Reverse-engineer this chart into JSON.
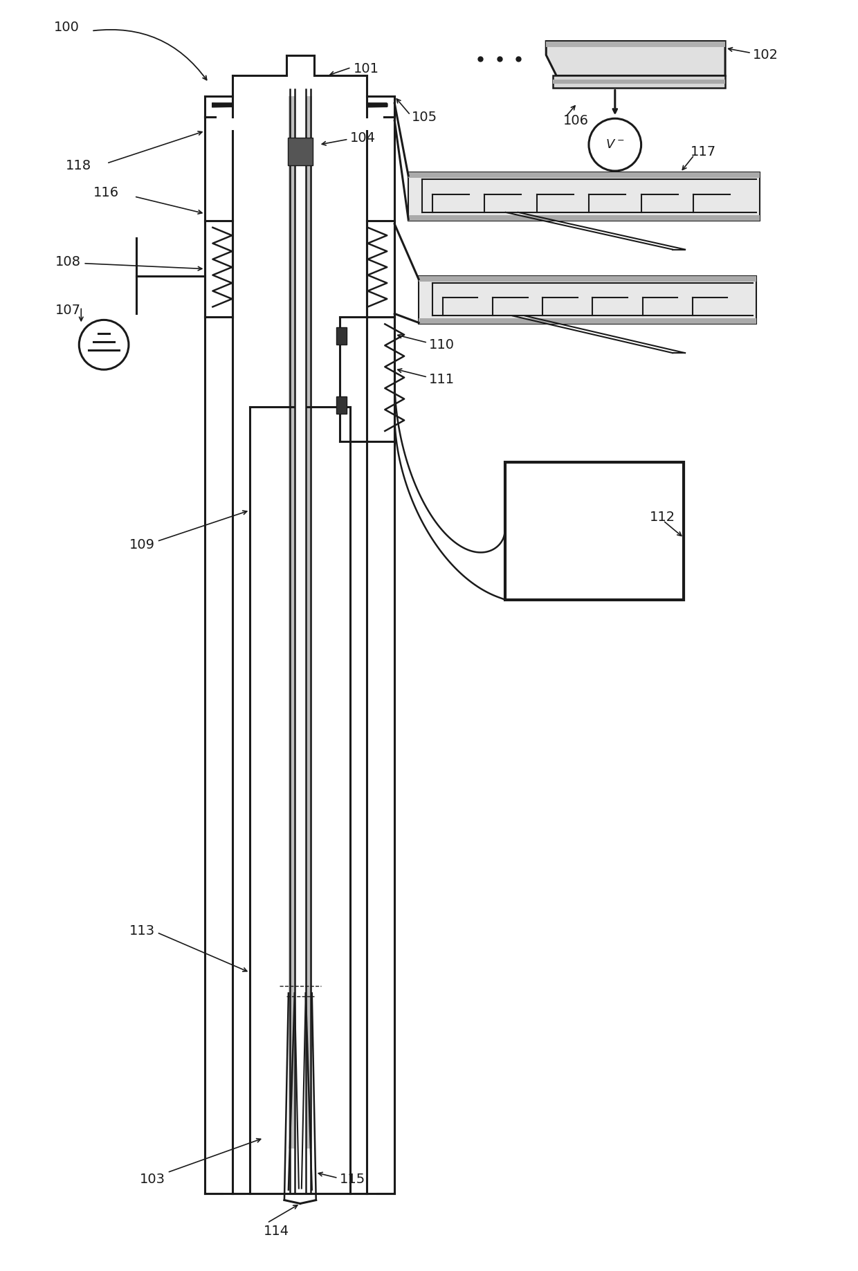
{
  "bg_color": "#ffffff",
  "lc": "#1a1a1a",
  "gc": "#b0b0b0",
  "figsize": [
    12.4,
    18.37
  ],
  "dpi": 100,
  "xlim": [
    0,
    1240
  ],
  "ylim": [
    0,
    1837
  ]
}
